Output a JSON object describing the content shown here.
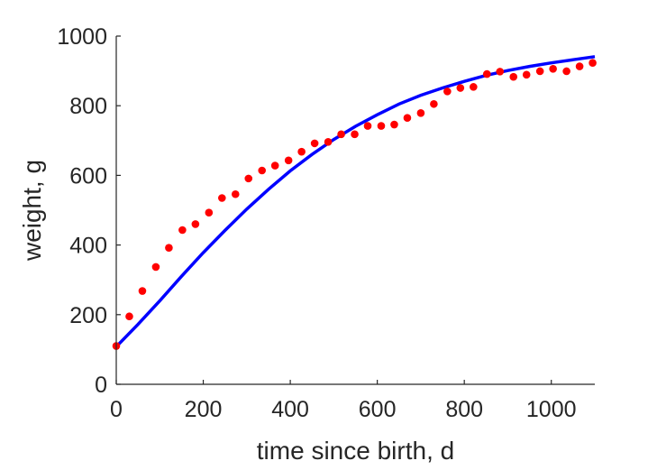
{
  "chart_data": {
    "type": "scatter",
    "xlabel": "time since birth, d",
    "ylabel": "weight, g",
    "xlim": [
      0,
      1100
    ],
    "ylim": [
      0,
      1000
    ],
    "xticks": [
      0,
      200,
      400,
      600,
      800,
      1000
    ],
    "yticks": [
      0,
      200,
      400,
      600,
      800,
      1000
    ],
    "grid": false,
    "series": [
      {
        "kind": "points",
        "color": "#ff0000",
        "x": [
          0,
          30,
          60,
          91,
          121,
          152,
          182,
          213,
          243,
          274,
          304,
          335,
          365,
          396,
          426,
          456,
          487,
          517,
          548,
          578,
          609,
          639,
          669,
          700,
          730,
          761,
          791,
          821,
          852,
          882,
          913,
          943,
          974,
          1004,
          1035,
          1065,
          1095
        ],
        "y": [
          110,
          195,
          268,
          337,
          392,
          443,
          460,
          493,
          535,
          546,
          591,
          614,
          628,
          643,
          668,
          692,
          696,
          718,
          718,
          742,
          742,
          746,
          765,
          779,
          805,
          841,
          851,
          854,
          891,
          898,
          883,
          889,
          899,
          906,
          899,
          913,
          923
        ]
      },
      {
        "kind": "line",
        "color": "#0000ff",
        "x": [
          0,
          50,
          100,
          150,
          200,
          250,
          300,
          350,
          400,
          450,
          500,
          550,
          600,
          650,
          700,
          750,
          800,
          850,
          900,
          950,
          1000,
          1050,
          1100
        ],
        "y": [
          108,
          172,
          240,
          310,
          378,
          442,
          503,
          560,
          613,
          660,
          703,
          741,
          774,
          805,
          830,
          851,
          870,
          887,
          901,
          913,
          923,
          932,
          941
        ]
      }
    ]
  }
}
